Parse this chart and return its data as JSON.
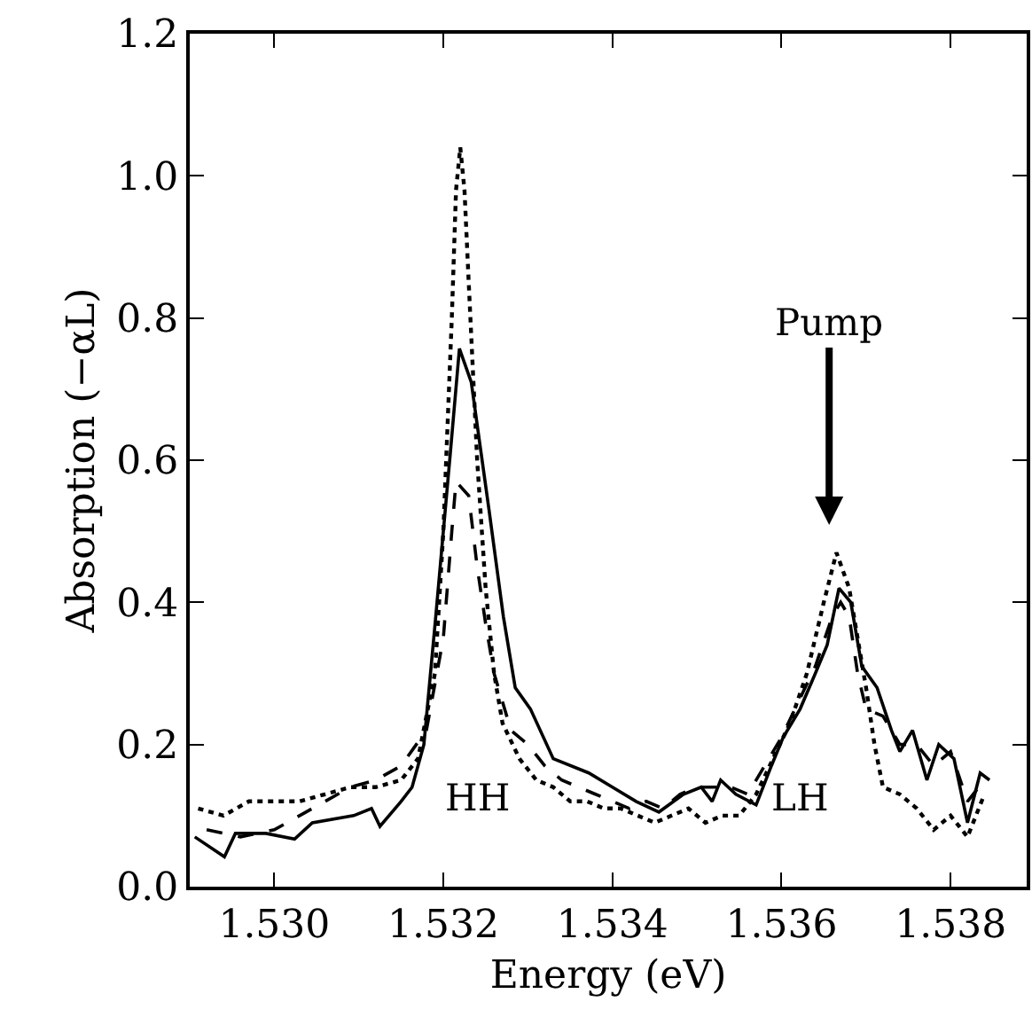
{
  "chart_data": {
    "type": "line",
    "xlabel": "Energy (eV)",
    "ylabel": "Absorption (−αL)",
    "xlim": [
      1.529,
      1.5389
    ],
    "xticks": [
      {
        "value": 1.53,
        "label": "1.530"
      },
      {
        "value": 1.532,
        "label": "1.532"
      },
      {
        "value": 1.534,
        "label": "1.534"
      },
      {
        "value": 1.536,
        "label": "1.536"
      },
      {
        "value": 1.538,
        "label": "1.538"
      }
    ],
    "ylim": [
      0,
      1.2
    ],
    "yticks": [
      {
        "value": 0,
        "label": "0.0"
      },
      {
        "value": 0.2,
        "label": "0.2"
      },
      {
        "value": 0.4,
        "label": "0.4"
      },
      {
        "value": 0.6,
        "label": "0.6"
      },
      {
        "value": 0.8,
        "label": "0.8"
      },
      {
        "value": 1.0,
        "label": "1.0"
      },
      {
        "value": 1.2,
        "label": "1.2"
      }
    ],
    "series": [
      {
        "color": "#000000",
        "line_style": "solid",
        "x": [
          1.52906,
          1.52941,
          1.52954,
          1.5299,
          1.53024,
          1.53045,
          1.53094,
          1.53115,
          1.53125,
          1.5315,
          1.53163,
          1.53177,
          1.53191,
          1.53209,
          1.53219,
          1.53233,
          1.53254,
          1.53271,
          1.53285,
          1.53303,
          1.5333,
          1.53372,
          1.534,
          1.53428,
          1.53455,
          1.53484,
          1.53505,
          1.53518,
          1.53528,
          1.53546,
          1.5357,
          1.53588,
          1.53602,
          1.53622,
          1.5364,
          1.53654,
          1.53668,
          1.53682,
          1.53695,
          1.53713,
          1.5373,
          1.5374,
          1.53755,
          1.53772,
          1.53786,
          1.53804,
          1.5382,
          1.53835,
          1.53846
        ],
        "values": [
          0.07,
          0.042,
          0.075,
          0.075,
          0.067,
          0.09,
          0.1,
          0.11,
          0.085,
          0.12,
          0.14,
          0.2,
          0.38,
          0.62,
          0.757,
          0.71,
          0.53,
          0.38,
          0.28,
          0.25,
          0.18,
          0.16,
          0.14,
          0.12,
          0.105,
          0.13,
          0.14,
          0.12,
          0.15,
          0.13,
          0.115,
          0.17,
          0.21,
          0.25,
          0.3,
          0.34,
          0.42,
          0.4,
          0.31,
          0.28,
          0.22,
          0.19,
          0.22,
          0.15,
          0.2,
          0.18,
          0.09,
          0.16,
          0.15
        ]
      },
      {
        "color": "#000000",
        "line_style": "dashed",
        "x": [
          1.5292,
          1.5296,
          1.53,
          1.5303,
          1.5306,
          1.5309,
          1.5312,
          1.5315,
          1.5318,
          1.532,
          1.5321,
          1.53215,
          1.5323,
          1.5324,
          1.5325,
          1.5326,
          1.5328,
          1.533,
          1.5332,
          1.5334,
          1.5336,
          1.5338,
          1.534,
          1.5342,
          1.5344,
          1.5346,
          1.5348,
          1.535,
          1.5352,
          1.5354,
          1.5356,
          1.5358,
          1.536,
          1.5362,
          1.5364,
          1.5366,
          1.5367,
          1.5368,
          1.5369,
          1.537,
          1.5372,
          1.5374,
          1.5376,
          1.5378,
          1.538,
          1.5382,
          1.5384
        ],
        "values": [
          0.08,
          0.07,
          0.08,
          0.1,
          0.12,
          0.14,
          0.15,
          0.17,
          0.22,
          0.35,
          0.5,
          0.57,
          0.55,
          0.45,
          0.37,
          0.3,
          0.22,
          0.2,
          0.17,
          0.15,
          0.14,
          0.13,
          0.12,
          0.11,
          0.12,
          0.11,
          0.13,
          0.14,
          0.14,
          0.14,
          0.13,
          0.17,
          0.21,
          0.26,
          0.31,
          0.38,
          0.4,
          0.38,
          0.3,
          0.25,
          0.24,
          0.2,
          0.2,
          0.17,
          0.19,
          0.12,
          0.15
        ]
      },
      {
        "color": "#000000",
        "line_style": "dotted",
        "x": [
          1.5291,
          1.5294,
          1.5297,
          1.53,
          1.5303,
          1.5306,
          1.5309,
          1.5312,
          1.5315,
          1.5317,
          1.5319,
          1.532,
          1.5321,
          1.53215,
          1.5322,
          1.53225,
          1.5323,
          1.5324,
          1.5325,
          1.5326,
          1.5327,
          1.5329,
          1.5331,
          1.5333,
          1.5335,
          1.5337,
          1.5339,
          1.5341,
          1.5343,
          1.5345,
          1.5347,
          1.5349,
          1.5351,
          1.5353,
          1.5355,
          1.5357,
          1.5359,
          1.5361,
          1.5363,
          1.5365,
          1.53665,
          1.5368,
          1.537,
          1.5371,
          1.5372,
          1.5374,
          1.5376,
          1.5378,
          1.538,
          1.5382,
          1.5384
        ],
        "values": [
          0.11,
          0.1,
          0.12,
          0.12,
          0.12,
          0.13,
          0.14,
          0.14,
          0.15,
          0.18,
          0.3,
          0.5,
          0.8,
          0.98,
          1.04,
          0.98,
          0.85,
          0.6,
          0.42,
          0.3,
          0.23,
          0.18,
          0.15,
          0.14,
          0.12,
          0.12,
          0.11,
          0.11,
          0.1,
          0.09,
          0.1,
          0.11,
          0.09,
          0.1,
          0.1,
          0.13,
          0.18,
          0.23,
          0.3,
          0.4,
          0.47,
          0.42,
          0.28,
          0.2,
          0.14,
          0.13,
          0.11,
          0.08,
          0.1,
          0.07,
          0.13
        ]
      }
    ],
    "annotations": [
      "Pump",
      "HH",
      "LH"
    ]
  }
}
